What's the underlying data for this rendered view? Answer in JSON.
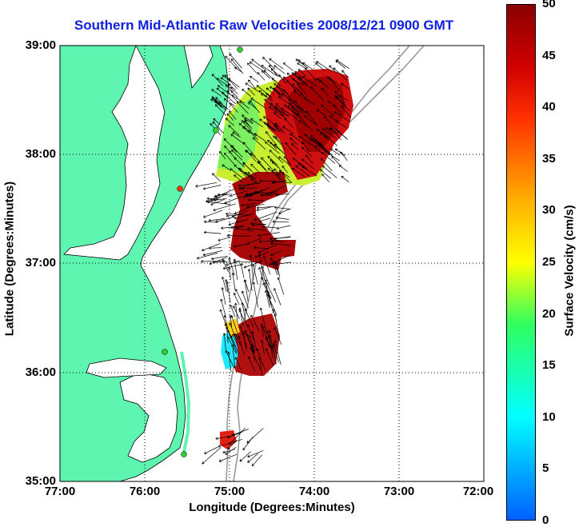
{
  "title": "Southern Mid-Atlantic Raw Velocities 2008/12/21 0900 GMT",
  "x_axis": {
    "label": "Longitude (Degrees:Minutes)",
    "ticks": [
      "77:00",
      "76:00",
      "75:00",
      "74:00",
      "73:00",
      "72:00"
    ]
  },
  "y_axis": {
    "label": "Latitude (Degrees:Minutes)",
    "ticks": [
      "39:00",
      "38:00",
      "37:00",
      "36:00",
      "35:00"
    ]
  },
  "colorbar": {
    "label": "Surface Velocity (cm/s)",
    "ticks": [
      "50",
      "45",
      "40",
      "35",
      "30",
      "25",
      "20",
      "15",
      "10",
      "5",
      "0"
    ]
  },
  "colors": {
    "title": "#1020e0",
    "land": "#5ef5b0",
    "coast_line": "#000000",
    "bathymetry": "#999999",
    "station_marker": "#33cc33",
    "station_marker_alt": "#ff3300"
  },
  "map": {
    "lon_range": [
      -77,
      -72
    ],
    "lat_range": [
      35,
      39
    ],
    "grid": true
  }
}
